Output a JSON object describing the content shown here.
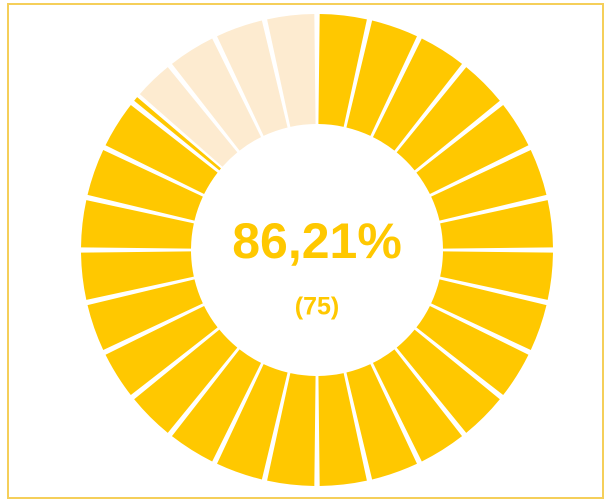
{
  "chart_data": {
    "type": "gauge",
    "value": 86.21,
    "value_label": "86,21%",
    "count": 75,
    "count_label": "(75)",
    "range": [
      0,
      100
    ],
    "color": "#ffc800",
    "track_color": "#fdebd0"
  }
}
